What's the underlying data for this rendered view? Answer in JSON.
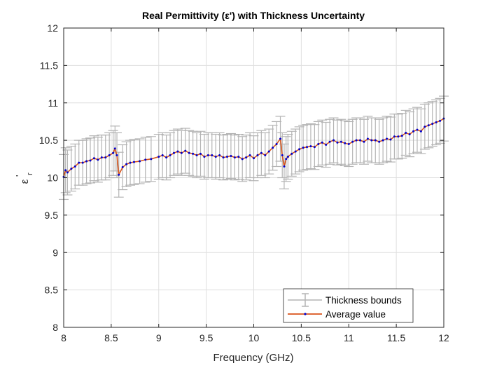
{
  "chart_data": {
    "type": "line",
    "title": "Real Permittivity (ε') with Thickness Uncertainty",
    "xlabel": "Frequency (GHz)",
    "ylabel": "ε",
    "ylabel_sub": "r",
    "ylabel_prime": "'",
    "xlim": [
      8,
      12
    ],
    "ylim": [
      8,
      12
    ],
    "xticks": [
      8,
      8.5,
      9,
      9.5,
      10,
      10.5,
      11,
      11.5,
      12
    ],
    "xtick_labels": [
      "8",
      "8.5",
      "9",
      "9.5",
      "10",
      "10.5",
      "11",
      "11.5",
      "12"
    ],
    "yticks": [
      8,
      8.5,
      9,
      9.5,
      10,
      10.5,
      11,
      11.5,
      12
    ],
    "ytick_labels": [
      "8",
      "8.5",
      "9",
      "9.5",
      "10",
      "10.5",
      "11",
      "11.5",
      "12"
    ],
    "grid": true,
    "legend_position": "bottom-right",
    "colors": {
      "bounds": "#b4b4b4",
      "line": "#d95319",
      "marker": "#0000cc"
    },
    "series": [
      {
        "name": "Thickness bounds",
        "kind": "errorbar",
        "error_halfwidth": 0.3
      },
      {
        "name": "Average value",
        "kind": "line-marker"
      }
    ],
    "points": [
      [
        8,
        10.01
      ],
      [
        8.02,
        10.1
      ],
      [
        8.04,
        10.07
      ],
      [
        8.08,
        10.12
      ],
      [
        8.12,
        10.15
      ],
      [
        8.16,
        10.2
      ],
      [
        8.2,
        10.2
      ],
      [
        8.24,
        10.22
      ],
      [
        8.28,
        10.23
      ],
      [
        8.32,
        10.26
      ],
      [
        8.36,
        10.24
      ],
      [
        8.4,
        10.27
      ],
      [
        8.44,
        10.27
      ],
      [
        8.48,
        10.3
      ],
      [
        8.52,
        10.33
      ],
      [
        8.54,
        10.39
      ],
      [
        8.56,
        10.3
      ],
      [
        8.58,
        10.04
      ],
      [
        8.62,
        10.14
      ],
      [
        8.66,
        10.18
      ],
      [
        8.7,
        10.2
      ],
      [
        8.74,
        10.21
      ],
      [
        8.8,
        10.22
      ],
      [
        8.86,
        10.24
      ],
      [
        8.92,
        10.25
      ],
      [
        9,
        10.28
      ],
      [
        9.04,
        10.3
      ],
      [
        9.08,
        10.27
      ],
      [
        9.12,
        10.3
      ],
      [
        9.16,
        10.33
      ],
      [
        9.2,
        10.35
      ],
      [
        9.24,
        10.33
      ],
      [
        9.28,
        10.36
      ],
      [
        9.32,
        10.33
      ],
      [
        9.36,
        10.32
      ],
      [
        9.4,
        10.3
      ],
      [
        9.44,
        10.32
      ],
      [
        9.48,
        10.28
      ],
      [
        9.52,
        10.3
      ],
      [
        9.56,
        10.3
      ],
      [
        9.6,
        10.28
      ],
      [
        9.64,
        10.3
      ],
      [
        9.68,
        10.27
      ],
      [
        9.72,
        10.28
      ],
      [
        9.76,
        10.29
      ],
      [
        9.8,
        10.27
      ],
      [
        9.84,
        10.28
      ],
      [
        9.88,
        10.25
      ],
      [
        9.92,
        10.27
      ],
      [
        9.96,
        10.3
      ],
      [
        10,
        10.26
      ],
      [
        10.04,
        10.3
      ],
      [
        10.08,
        10.33
      ],
      [
        10.12,
        10.3
      ],
      [
        10.16,
        10.35
      ],
      [
        10.2,
        10.4
      ],
      [
        10.24,
        10.45
      ],
      [
        10.28,
        10.52
      ],
      [
        10.3,
        10.3
      ],
      [
        10.32,
        10.15
      ],
      [
        10.34,
        10.25
      ],
      [
        10.36,
        10.28
      ],
      [
        10.4,
        10.32
      ],
      [
        10.44,
        10.35
      ],
      [
        10.48,
        10.38
      ],
      [
        10.52,
        10.4
      ],
      [
        10.56,
        10.41
      ],
      [
        10.6,
        10.42
      ],
      [
        10.64,
        10.41
      ],
      [
        10.68,
        10.45
      ],
      [
        10.72,
        10.47
      ],
      [
        10.76,
        10.44
      ],
      [
        10.8,
        10.48
      ],
      [
        10.84,
        10.5
      ],
      [
        10.88,
        10.47
      ],
      [
        10.92,
        10.48
      ],
      [
        10.96,
        10.46
      ],
      [
        11,
        10.45
      ],
      [
        11.04,
        10.48
      ],
      [
        11.08,
        10.5
      ],
      [
        11.12,
        10.5
      ],
      [
        11.16,
        10.48
      ],
      [
        11.2,
        10.52
      ],
      [
        11.24,
        10.5
      ],
      [
        11.28,
        10.5
      ],
      [
        11.32,
        10.48
      ],
      [
        11.36,
        10.5
      ],
      [
        11.4,
        10.52
      ],
      [
        11.44,
        10.51
      ],
      [
        11.48,
        10.55
      ],
      [
        11.52,
        10.55
      ],
      [
        11.56,
        10.56
      ],
      [
        11.6,
        10.6
      ],
      [
        11.64,
        10.58
      ],
      [
        11.68,
        10.62
      ],
      [
        11.72,
        10.64
      ],
      [
        11.76,
        10.62
      ],
      [
        11.8,
        10.68
      ],
      [
        11.84,
        10.7
      ],
      [
        11.88,
        10.72
      ],
      [
        11.92,
        10.74
      ],
      [
        11.96,
        10.76
      ],
      [
        12,
        10.79
      ]
    ]
  }
}
